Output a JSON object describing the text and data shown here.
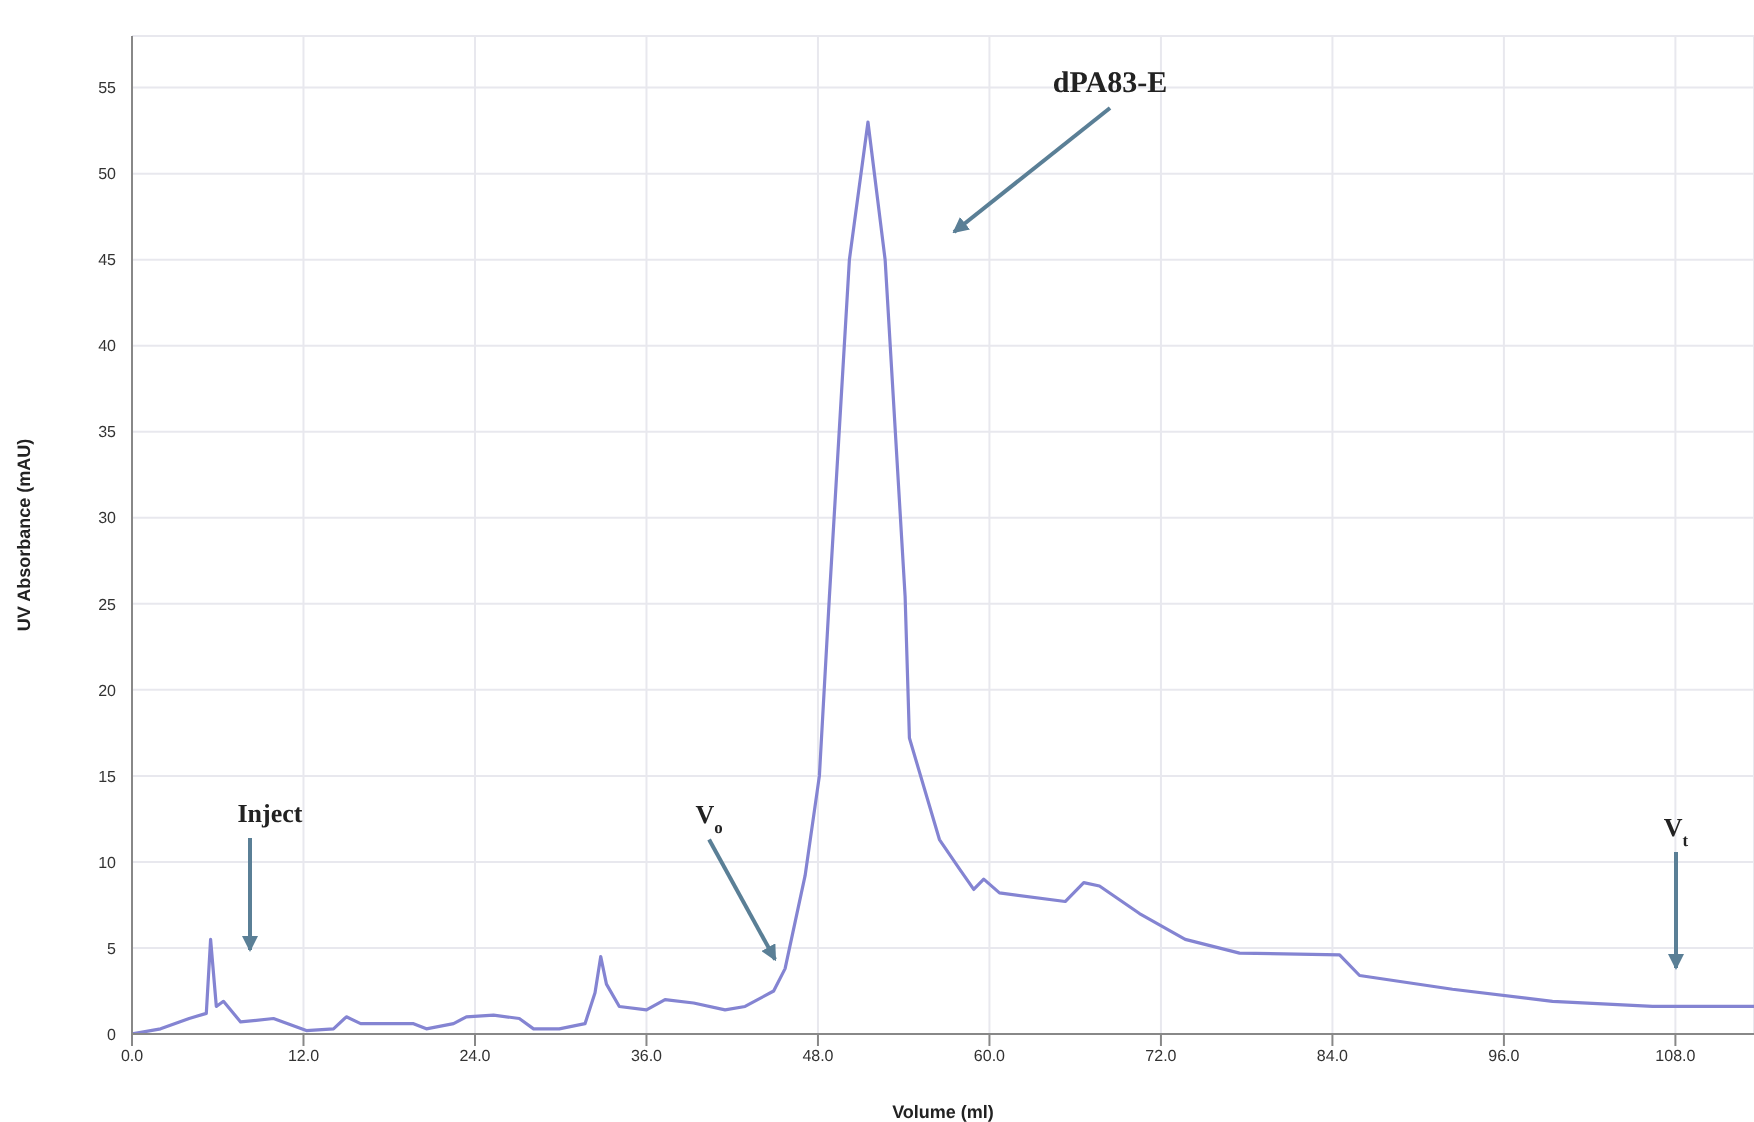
{
  "chart_data": {
    "type": "line",
    "xlabel": "Volume (ml)",
    "ylabel": "UV Absorbance (mAU)",
    "x": [
      0,
      2,
      4,
      5.2,
      5.5,
      5.9,
      6.4,
      7.6,
      9.9,
      12.2,
      14.1,
      15,
      16,
      19.7,
      20.6,
      22.5,
      23.4,
      25.3,
      27.1,
      28.1,
      29.9,
      31.7,
      32.4,
      32.8,
      33.2,
      34.1,
      36,
      37.3,
      39.3,
      41.5,
      42.9,
      44.9,
      45.7,
      47.1,
      48.1,
      48.8,
      50.2,
      51.5,
      52.7,
      54.1,
      54.4,
      56.5,
      57.9,
      58.9,
      59.6,
      60.7,
      65.3,
      66.6,
      67.7,
      70.5,
      73.7,
      77.5,
      84.5,
      85.9,
      92.4,
      99.4,
      106.4,
      113.5
    ],
    "series": [
      {
        "color": "#8484d2",
        "values": [
          0,
          0.3,
          0.9,
          1.2,
          5.5,
          1.6,
          1.9,
          0.7,
          0.9,
          0.2,
          0.3,
          1.0,
          0.6,
          0.6,
          0.3,
          0.6,
          1.0,
          1.1,
          0.9,
          0.3,
          0.3,
          0.6,
          2.4,
          4.5,
          2.9,
          1.6,
          1.4,
          2.0,
          1.8,
          1.4,
          1.6,
          2.5,
          3.8,
          9.2,
          15,
          25.4,
          45,
          53,
          45,
          25.4,
          17.2,
          11.3,
          9.6,
          8.4,
          9.0,
          8.2,
          7.7,
          8.8,
          8.6,
          7.0,
          5.5,
          4.7,
          4.6,
          3.4,
          2.6,
          1.9,
          1.6,
          1.6
        ]
      }
    ],
    "xlim": [
      0,
      113.5
    ],
    "ylim": [
      0,
      58
    ],
    "xticks": [
      {
        "value": 0,
        "label": "0.0"
      },
      {
        "value": 12,
        "label": "12.0"
      },
      {
        "value": 24,
        "label": "24.0"
      },
      {
        "value": 36,
        "label": "36.0"
      },
      {
        "value": 48,
        "label": "48.0"
      },
      {
        "value": 60,
        "label": "60.0"
      },
      {
        "value": 72,
        "label": "72.0"
      },
      {
        "value": 84,
        "label": "84.0"
      },
      {
        "value": 96,
        "label": "96.0"
      },
      {
        "value": 108,
        "label": "108.0"
      }
    ],
    "yticks": [
      0,
      5,
      10,
      15,
      20,
      25,
      30,
      35,
      40,
      45,
      50,
      55
    ],
    "grid": true,
    "marker": "none",
    "line_style": "solid",
    "annotations": [
      "dPA83-E",
      "Inject",
      {
        "text": "V$_{o}$",
        "x": 45,
        "y": 4.1
      },
      "V$_{t}$"
    ]
  }
}
